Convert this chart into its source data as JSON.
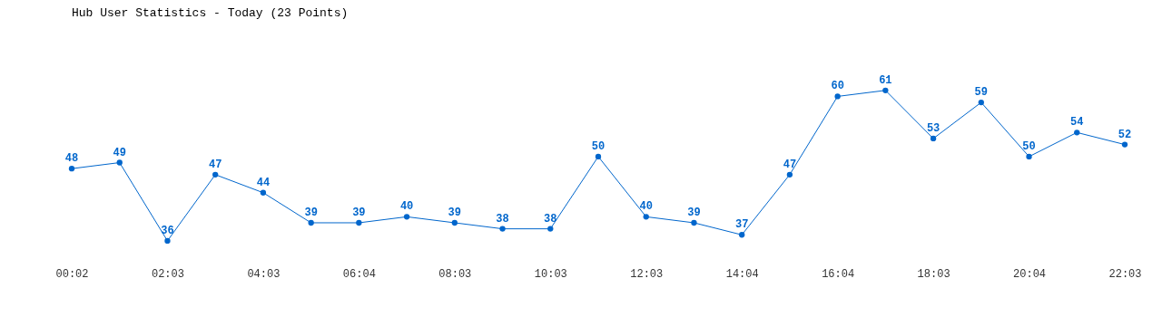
{
  "chart_data": {
    "type": "line",
    "title": "Hub User Statistics - Today (23 Points)",
    "categories": [
      "00:02",
      null,
      "02:03",
      null,
      "04:03",
      null,
      "06:04",
      null,
      "08:03",
      null,
      "10:03",
      null,
      "12:03",
      null,
      "14:04",
      null,
      "16:04",
      null,
      "18:03",
      null,
      "20:04",
      null,
      "22:03"
    ],
    "series": [
      {
        "color": "#0066cc",
        "values": [
          48,
          49,
          36,
          47,
          44,
          39,
          39,
          40,
          39,
          38,
          38,
          50,
          40,
          39,
          37,
          47,
          60,
          61,
          53,
          59,
          50,
          54,
          52
        ]
      }
    ],
    "data_labels": true,
    "marker": "circle",
    "line_style": "solid"
  }
}
